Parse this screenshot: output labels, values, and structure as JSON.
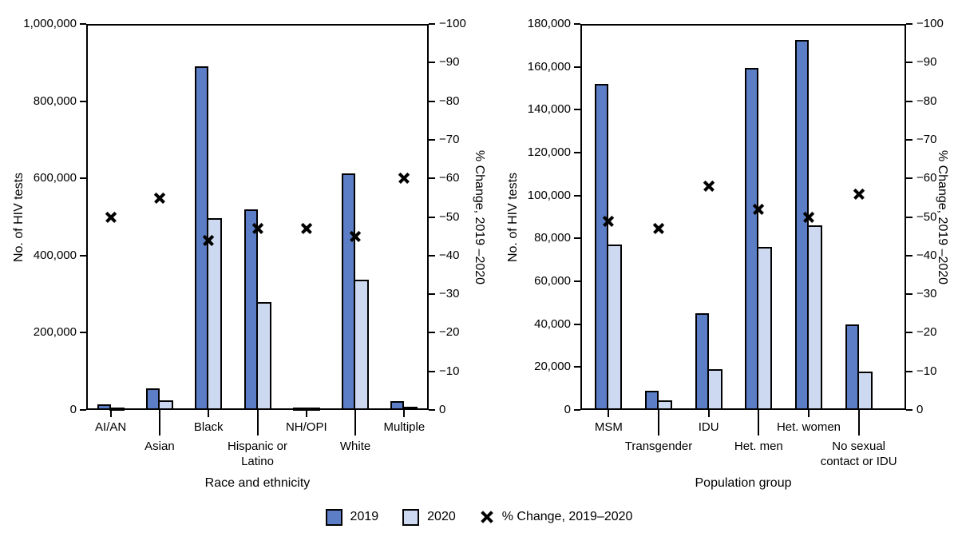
{
  "figure": {
    "colors": {
      "bar_2019": "#5b7ec6",
      "bar_2020": "#cdd9f0",
      "bar_border": "#000000",
      "axis": "#000000",
      "text": "#000000",
      "background": "#ffffff"
    },
    "legend": {
      "items": [
        {
          "type": "swatch-2019",
          "label": "2019"
        },
        {
          "type": "swatch-2020",
          "label": "2020"
        },
        {
          "type": "x-marker",
          "label": "% Change, 2019–2020"
        }
      ]
    }
  },
  "chart_data": [
    {
      "type": "bar",
      "panel": "left",
      "xlabel": "Race and ethnicity",
      "ylabel_left": "No. of HIV tests",
      "ylabel_right": "% Change, 2019 –2020",
      "ylim_left": [
        0,
        1000000
      ],
      "ytick_step_left": 200000,
      "ylim_right": [
        0,
        -100
      ],
      "ytick_step_right": 10,
      "grid": false,
      "categories": [
        "AI/AN",
        "Asian",
        "Black",
        "Hispanic or\nLatino",
        "NH/OPI",
        "White",
        "Multiple"
      ],
      "series": [
        {
          "name": "2019",
          "values": [
            15000,
            55000,
            890000,
            520000,
            5000,
            613000,
            22000
          ]
        },
        {
          "name": "2020",
          "values": [
            7000,
            25000,
            497000,
            280000,
            3000,
            337000,
            9000
          ]
        },
        {
          "name": "% Change, 2019–2020",
          "values": [
            -50,
            -55,
            -44,
            -47,
            -47,
            -45,
            -60
          ]
        }
      ]
    },
    {
      "type": "bar",
      "panel": "right",
      "xlabel": "Population group",
      "ylabel_left": "No. of HIV tests",
      "ylabel_right": "% Change, 2019 –2020",
      "ylim_left": [
        0,
        180000
      ],
      "ytick_step_left": 20000,
      "ylim_right": [
        0,
        -100
      ],
      "ytick_step_right": 10,
      "grid": false,
      "categories": [
        "MSM",
        "Transgender",
        "IDU",
        "Het. men",
        "Het. women",
        "No sexual\ncontact or IDU"
      ],
      "series": [
        {
          "name": "2019",
          "values": [
            152000,
            9000,
            45000,
            159500,
            172500,
            40000
          ]
        },
        {
          "name": "2020",
          "values": [
            77000,
            4500,
            19000,
            76000,
            86000,
            18000
          ]
        },
        {
          "name": "% Change, 2019–2020",
          "values": [
            -49,
            -47,
            -58,
            -52,
            -50,
            -56
          ]
        }
      ]
    }
  ]
}
